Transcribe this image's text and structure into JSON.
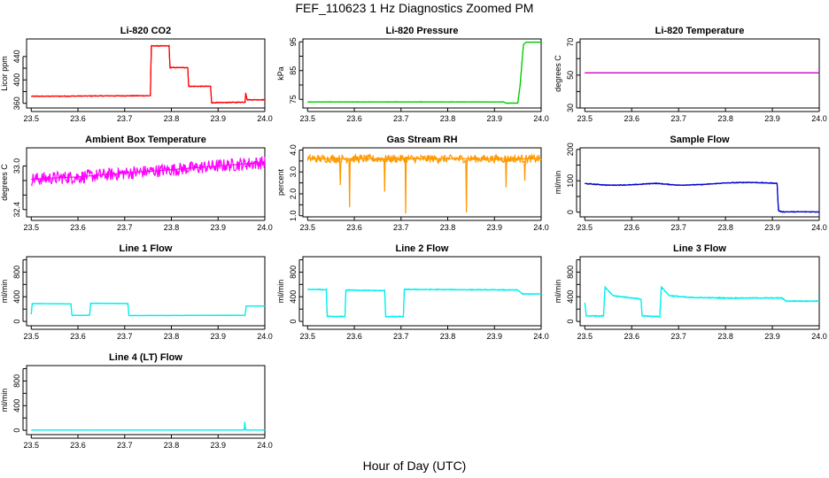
{
  "figure": {
    "title": "FEF_110623  1 Hz Diagnostics Zoomed PM",
    "xlabel": "Hour of Day (UTC)"
  },
  "chart_data": [
    {
      "id": "co2",
      "type": "line",
      "title": "Li-820 CO2",
      "ylabel": "Licor ppm",
      "color": "#ff0000",
      "xlim": [
        23.49,
        24.0
      ],
      "ylim": [
        352,
        470
      ],
      "xticks": [
        "23.5",
        "23.6",
        "23.7",
        "23.8",
        "23.9",
        "24.0"
      ],
      "yticks": [
        360,
        380,
        400,
        420,
        440
      ],
      "ytick_labels": [
        "360",
        "",
        "400",
        "",
        "440"
      ],
      "noise": 0.8,
      "x": [
        23.5,
        23.755,
        23.757,
        23.795,
        23.797,
        23.835,
        23.837,
        23.884,
        23.886,
        23.958,
        23.959,
        23.962,
        23.963,
        24.0
      ],
      "y": [
        372,
        373,
        458,
        458,
        421,
        421,
        389,
        389,
        361,
        362,
        378,
        366,
        366,
        366
      ]
    },
    {
      "id": "pressure",
      "type": "line",
      "title": "Li-820 Pressure",
      "ylabel": "kPa",
      "color": "#00cc00",
      "xlim": [
        23.49,
        24.0
      ],
      "ylim": [
        72,
        96
      ],
      "xticks": [
        "23.5",
        "23.6",
        "23.7",
        "23.8",
        "23.9",
        "24.0"
      ],
      "yticks": [
        75,
        80,
        85,
        90,
        95
      ],
      "ytick_labels": [
        "75",
        "",
        "85",
        "",
        "95"
      ],
      "noise": 0.08,
      "x": [
        23.5,
        23.92,
        23.925,
        23.95,
        23.955,
        23.962,
        23.968,
        24.0
      ],
      "y": [
        74.1,
        74.1,
        73.7,
        73.7,
        80,
        94,
        94.9,
        94.9
      ]
    },
    {
      "id": "temp",
      "type": "line",
      "title": "Li-820 Temperature",
      "ylabel": "degrees C",
      "color": "#cc00cc",
      "xlim": [
        23.49,
        24.0
      ],
      "ylim": [
        30,
        72
      ],
      "xticks": [
        "23.5",
        "23.6",
        "23.7",
        "23.8",
        "23.9",
        "24.0"
      ],
      "yticks": [
        30,
        40,
        50,
        60,
        70
      ],
      "ytick_labels": [
        "30",
        "",
        "50",
        "",
        "70"
      ],
      "noise": 0,
      "x": [
        23.5,
        24.0
      ],
      "y": [
        51.3,
        51.3
      ]
    },
    {
      "id": "boxtemp",
      "type": "line",
      "title": "Ambient Box Temperature",
      "ylabel": "degrees C",
      "color": "#ff00ff",
      "xlim": [
        23.49,
        24.0
      ],
      "ylim": [
        32.3,
        33.25
      ],
      "xticks": [
        "23.5",
        "23.6",
        "23.7",
        "23.8",
        "23.9",
        "24.0"
      ],
      "yticks": [
        32.4,
        32.6,
        32.8,
        33.0
      ],
      "ytick_labels": [
        "32.4",
        "",
        "",
        "33.0"
      ],
      "noise": 0.09,
      "x": [
        23.5,
        23.6,
        23.7,
        23.8,
        23.9,
        24.0
      ],
      "y": [
        32.82,
        32.85,
        32.9,
        32.95,
        33.0,
        33.05
      ]
    },
    {
      "id": "rh",
      "type": "line",
      "title": "Gas Stream RH",
      "ylabel": "percent",
      "color": "#ff9900",
      "xlim": [
        23.49,
        24.0
      ],
      "ylim": [
        0.95,
        4.1
      ],
      "xticks": [
        "23.5",
        "23.6",
        "23.7",
        "23.8",
        "23.9",
        "24.0"
      ],
      "yticks": [
        1.0,
        1.5,
        2.0,
        2.5,
        3.0,
        3.5,
        4.0
      ],
      "ytick_labels": [
        "1.0",
        "",
        "2.0",
        "",
        "3.0",
        "",
        "4.0"
      ],
      "noise": 0.18,
      "x": [
        23.5,
        24.0
      ],
      "y": [
        3.6,
        3.6
      ],
      "spikes": [
        [
          23.57,
          2.4
        ],
        [
          23.59,
          1.4
        ],
        [
          23.665,
          2.1
        ],
        [
          23.71,
          1.1
        ],
        [
          23.84,
          1.15
        ],
        [
          23.925,
          2.3
        ],
        [
          23.965,
          2.6
        ]
      ]
    },
    {
      "id": "sample",
      "type": "line",
      "title": "Sample Flow",
      "ylabel": "ml/min",
      "color": "#0000cc",
      "xlim": [
        23.49,
        24.0
      ],
      "ylim": [
        -15,
        205
      ],
      "xticks": [
        "23.5",
        "23.6",
        "23.7",
        "23.8",
        "23.9",
        "24.0"
      ],
      "yticks": [
        0,
        50,
        100,
        150,
        200
      ],
      "ytick_labels": [
        "0",
        "",
        "100",
        "",
        "200"
      ],
      "noise": 1.5,
      "x": [
        23.5,
        23.55,
        23.6,
        23.65,
        23.7,
        23.75,
        23.8,
        23.85,
        23.91,
        23.913,
        23.92,
        24.0
      ],
      "y": [
        91,
        86,
        87,
        92,
        86,
        88,
        93,
        95,
        92,
        5,
        1,
        1
      ]
    },
    {
      "id": "line1",
      "type": "line",
      "title": "Line 1 Flow",
      "ylabel": "ml/min",
      "color": "#00eeee",
      "xlim": [
        23.49,
        24.0
      ],
      "ylim": [
        -70,
        1050
      ],
      "xticks": [
        "23.5",
        "23.6",
        "23.7",
        "23.8",
        "23.9",
        "24.0"
      ],
      "yticks": [
        0,
        200,
        400,
        600,
        800,
        1000
      ],
      "ytick_labels": [
        "0",
        "",
        "400",
        "",
        "800",
        ""
      ],
      "noise": 4,
      "x": [
        23.5,
        23.502,
        23.585,
        23.587,
        23.625,
        23.627,
        23.707,
        23.709,
        23.958,
        23.96,
        24.0
      ],
      "y": [
        120,
        290,
        285,
        100,
        100,
        295,
        290,
        95,
        100,
        250,
        250
      ]
    },
    {
      "id": "line2",
      "type": "line",
      "title": "Line 2 Flow",
      "ylabel": "ml/min",
      "color": "#00eeee",
      "xlim": [
        23.49,
        24.0
      ],
      "ylim": [
        -70,
        1050
      ],
      "xticks": [
        "23.5",
        "23.6",
        "23.7",
        "23.8",
        "23.9",
        "24.0"
      ],
      "yticks": [
        0,
        200,
        400,
        600,
        800,
        1000
      ],
      "ytick_labels": [
        "0",
        "",
        "400",
        "",
        "800",
        ""
      ],
      "noise": 8,
      "x": [
        23.5,
        23.54,
        23.542,
        23.58,
        23.582,
        23.665,
        23.667,
        23.705,
        23.707,
        23.95,
        23.96,
        24.0
      ],
      "y": [
        520,
        515,
        80,
        80,
        510,
        500,
        80,
        80,
        520,
        510,
        445,
        445
      ]
    },
    {
      "id": "line3",
      "type": "line",
      "title": "Line 3 Flow",
      "ylabel": "ml/min",
      "color": "#00eeee",
      "xlim": [
        23.49,
        24.0
      ],
      "ylim": [
        -70,
        1050
      ],
      "xticks": [
        "23.5",
        "23.6",
        "23.7",
        "23.8",
        "23.9",
        "24.0"
      ],
      "yticks": [
        0,
        200,
        400,
        600,
        800,
        1000
      ],
      "ytick_labels": [
        "0",
        "",
        "400",
        "",
        "800",
        ""
      ],
      "noise": 10,
      "x": [
        23.5,
        23.503,
        23.54,
        23.543,
        23.56,
        23.62,
        23.622,
        23.66,
        23.663,
        23.68,
        23.72,
        23.8,
        23.92,
        23.93,
        24.0
      ],
      "y": [
        300,
        90,
        90,
        560,
        420,
        360,
        90,
        80,
        560,
        420,
        390,
        380,
        380,
        330,
        330
      ]
    },
    {
      "id": "line4",
      "type": "line",
      "title": "Line 4 (LT) Flow",
      "ylabel": "ml/min",
      "color": "#00eeee",
      "xlim": [
        23.49,
        24.0
      ],
      "ylim": [
        -70,
        1050
      ],
      "xticks": [
        "23.5",
        "23.6",
        "23.7",
        "23.8",
        "23.9",
        "24.0"
      ],
      "yticks": [
        0,
        200,
        400,
        600,
        800,
        1000
      ],
      "ytick_labels": [
        "0",
        "",
        "400",
        "",
        "800",
        ""
      ],
      "noise": 1,
      "x": [
        23.5,
        23.956,
        23.957,
        23.959,
        23.961,
        24.0
      ],
      "y": [
        5,
        5,
        140,
        5,
        5,
        5
      ]
    }
  ]
}
